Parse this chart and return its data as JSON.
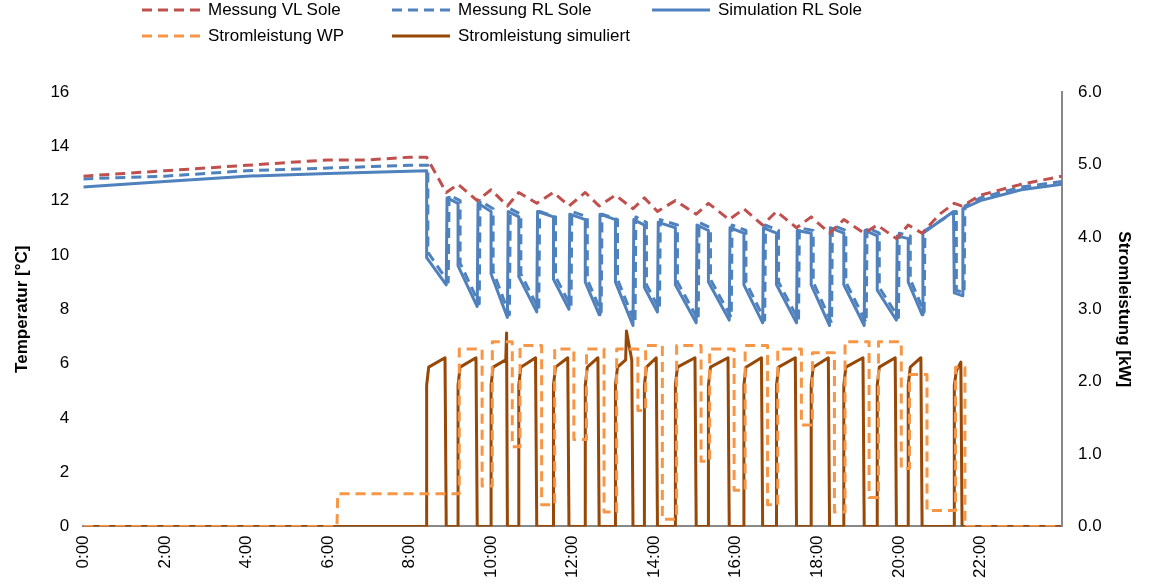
{
  "chart_data": {
    "type": "line",
    "ylabel": "Temperatur [°C]",
    "y2label": "Stromleistung [kW]",
    "xlim": [
      0,
      24
    ],
    "xticks": [
      {
        "value": 0,
        "label": "0:00"
      },
      {
        "value": 2,
        "label": "2:00"
      },
      {
        "value": 4,
        "label": "4:00"
      },
      {
        "value": 6,
        "label": "6:00"
      },
      {
        "value": 8,
        "label": "8:00"
      },
      {
        "value": 10,
        "label": "10:00"
      },
      {
        "value": 12,
        "label": "12:00"
      },
      {
        "value": 14,
        "label": "14:00"
      },
      {
        "value": 16,
        "label": "16:00"
      },
      {
        "value": 18,
        "label": "18:00"
      },
      {
        "value": 20,
        "label": "20:00"
      },
      {
        "value": 22,
        "label": "22:00"
      }
    ],
    "ylim": [
      0,
      16
    ],
    "yticks": [
      0,
      2,
      4,
      6,
      8,
      10,
      12,
      14,
      16
    ],
    "y2lim": [
      0,
      6
    ],
    "y2ticks": [
      {
        "value": 0,
        "label": "0.0"
      },
      {
        "value": 1,
        "label": "1.0"
      },
      {
        "value": 2,
        "label": "2.0"
      },
      {
        "value": 3,
        "label": "3.0"
      },
      {
        "value": 4,
        "label": "4.0"
      },
      {
        "value": 5,
        "label": "5.0"
      },
      {
        "value": 6,
        "label": "6.0"
      }
    ],
    "grid": false,
    "legend": "top",
    "series": [
      {
        "name": "Messung VL Sole",
        "color": "#c0504d",
        "line_style": "dashed",
        "x": [
          0,
          1,
          2,
          3,
          4,
          5,
          6,
          7,
          8,
          8.42,
          8.9,
          9.19,
          9.66,
          10.0,
          10.4,
          10.68,
          11.12,
          11.53,
          11.91,
          12.31,
          12.65,
          13.05,
          13.48,
          13.76,
          14.08,
          14.52,
          15.03,
          15.33,
          15.84,
          16.2,
          16.66,
          17.0,
          17.49,
          17.85,
          18.3,
          18.65,
          19.15,
          19.47,
          19.94,
          20.23,
          20.57,
          21.0,
          21.36,
          21.55,
          22,
          23,
          24
        ],
        "values": [
          12.9,
          13.0,
          13.1,
          13.2,
          13.3,
          13.4,
          13.5,
          13.5,
          13.6,
          13.6,
          12.3,
          12.6,
          12.0,
          12.4,
          11.8,
          12.3,
          11.9,
          12.3,
          11.8,
          12.3,
          11.8,
          12.2,
          11.7,
          12.1,
          11.6,
          12.0,
          11.5,
          11.9,
          11.3,
          11.7,
          11.1,
          11.6,
          11.0,
          11.4,
          10.8,
          11.3,
          10.8,
          11.1,
          10.6,
          11.1,
          10.8,
          11.5,
          11.9,
          11.8,
          12.2,
          12.6,
          12.9
        ]
      },
      {
        "name": "Messung RL Sole",
        "color": "#4f81bd",
        "line_style": "dashed",
        "x": [
          0,
          2,
          4,
          6,
          8,
          8.45,
          8.45,
          8.95,
          8.97,
          9.24,
          9.24,
          9.71,
          9.73,
          10.05,
          10.05,
          10.45,
          10.47,
          10.73,
          10.73,
          11.17,
          11.19,
          11.58,
          11.58,
          11.96,
          11.98,
          12.36,
          12.36,
          12.7,
          12.72,
          13.1,
          13.1,
          13.53,
          13.55,
          13.81,
          13.81,
          14.13,
          14.15,
          14.57,
          14.57,
          15.08,
          15.1,
          15.38,
          15.38,
          15.89,
          15.91,
          16.25,
          16.25,
          16.71,
          16.73,
          17.05,
          17.05,
          17.54,
          17.56,
          17.9,
          17.9,
          18.35,
          18.37,
          18.7,
          18.7,
          19.2,
          19.22,
          19.52,
          19.52,
          19.99,
          20.01,
          20.28,
          20.28,
          20.62,
          20.64,
          21.38,
          21.41,
          21.41,
          21.6,
          21.62,
          22,
          23,
          24
        ],
        "values": [
          12.8,
          12.9,
          13.1,
          13.2,
          13.3,
          13.3,
          10.1,
          9.0,
          12.2,
          12.0,
          9.7,
          8.2,
          12.0,
          11.7,
          9.4,
          7.8,
          11.7,
          11.5,
          9.3,
          8.0,
          11.6,
          11.4,
          9.2,
          8.1,
          11.6,
          11.4,
          9.1,
          7.9,
          11.5,
          11.3,
          9.1,
          7.5,
          11.4,
          11.2,
          8.9,
          8.0,
          11.3,
          11.1,
          9.0,
          7.6,
          11.2,
          11.0,
          9.1,
          7.7,
          11.1,
          10.9,
          9.0,
          7.6,
          11.1,
          10.9,
          9.0,
          7.6,
          11.0,
          10.9,
          9.0,
          7.5,
          11.1,
          10.9,
          9.0,
          7.5,
          11.0,
          10.8,
          8.8,
          7.7,
          10.8,
          10.7,
          9.1,
          7.9,
          10.9,
          11.6,
          11.6,
          8.7,
          8.6,
          11.8,
          12.1,
          12.5,
          12.7
        ]
      },
      {
        "name": "Simulation RL Sole",
        "color": "#4f81bd",
        "line_style": "solid",
        "x": [
          0,
          2,
          4,
          6,
          8.42,
          8.42,
          8.9,
          8.92,
          9.19,
          9.19,
          9.66,
          9.68,
          10.0,
          10.0,
          10.4,
          10.42,
          10.68,
          10.68,
          11.12,
          11.14,
          11.53,
          11.53,
          11.91,
          11.93,
          12.31,
          12.31,
          12.65,
          12.67,
          13.05,
          13.05,
          13.48,
          13.5,
          13.76,
          13.76,
          14.08,
          14.1,
          14.52,
          14.52,
          15.03,
          15.05,
          15.33,
          15.33,
          15.84,
          15.86,
          16.2,
          16.2,
          16.66,
          16.68,
          17.0,
          17.0,
          17.49,
          17.51,
          17.85,
          17.85,
          18.3,
          18.32,
          18.65,
          18.65,
          19.15,
          19.17,
          19.47,
          19.47,
          19.94,
          19.96,
          20.23,
          20.23,
          20.57,
          20.59,
          21.34,
          21.36,
          21.55,
          21.57,
          22,
          23,
          24
        ],
        "values": [
          12.5,
          12.7,
          12.9,
          13.0,
          13.1,
          9.9,
          8.9,
          12.1,
          11.9,
          9.6,
          8.1,
          11.9,
          11.6,
          9.3,
          7.7,
          11.6,
          11.4,
          9.2,
          7.9,
          11.6,
          11.4,
          9.1,
          8.0,
          11.5,
          11.3,
          9.0,
          7.8,
          11.5,
          11.3,
          9.0,
          7.4,
          11.3,
          11.1,
          8.8,
          7.9,
          11.2,
          11.0,
          8.9,
          7.5,
          11.1,
          10.9,
          9.0,
          7.6,
          11.0,
          10.8,
          8.9,
          7.5,
          11.0,
          10.8,
          8.9,
          7.5,
          10.9,
          10.8,
          8.9,
          7.4,
          11.0,
          10.8,
          8.9,
          7.4,
          10.9,
          10.7,
          8.7,
          7.6,
          10.7,
          10.6,
          9.0,
          7.8,
          10.8,
          11.6,
          8.6,
          8.5,
          11.7,
          12.0,
          12.4,
          12.6
        ]
      },
      {
        "name": "Stromleistung WP",
        "color": "#f79646",
        "line_style": "dashed",
        "axis": "y2",
        "x": [
          0,
          6.22,
          6.24,
          9.22,
          9.22,
          9.78,
          9.78,
          10.03,
          10.03,
          10.52,
          10.52,
          10.71,
          10.71,
          11.24,
          11.24,
          11.56,
          11.56,
          12.03,
          12.03,
          12.34,
          12.34,
          12.77,
          12.77,
          13.08,
          13.08,
          13.6,
          13.6,
          13.79,
          13.79,
          14.2,
          14.2,
          14.55,
          14.55,
          15.15,
          15.15,
          15.36,
          15.36,
          15.96,
          15.96,
          16.23,
          16.23,
          16.78,
          16.78,
          17.03,
          17.03,
          17.61,
          17.61,
          17.88,
          17.88,
          18.42,
          18.42,
          18.68,
          18.68,
          19.27,
          19.27,
          19.5,
          19.5,
          20.06,
          20.06,
          20.26,
          20.26,
          20.69,
          20.69,
          21.39,
          21.39,
          21.62,
          21.62,
          24
        ],
        "values": [
          0,
          0,
          0.45,
          0.45,
          2.45,
          2.45,
          0.56,
          0.56,
          2.55,
          2.55,
          1.1,
          1.1,
          2.5,
          2.5,
          0.3,
          0.3,
          2.45,
          2.45,
          1.2,
          1.2,
          2.45,
          2.45,
          0.2,
          0.2,
          2.45,
          2.45,
          1.6,
          1.6,
          2.5,
          2.5,
          0.1,
          0.1,
          2.5,
          2.5,
          0.9,
          0.9,
          2.45,
          2.45,
          0.5,
          0.5,
          2.5,
          2.5,
          0.3,
          0.3,
          2.45,
          2.45,
          1.4,
          1.4,
          2.4,
          2.4,
          0.2,
          0.2,
          2.55,
          2.55,
          0.4,
          0.4,
          2.55,
          2.55,
          0.8,
          0.8,
          2.1,
          2.1,
          0.22,
          0.22,
          2.2,
          2.2,
          0,
          0
        ]
      },
      {
        "name": "Stromleistung simuliert",
        "color": "#974706",
        "line_style": "solid",
        "axis": "y2",
        "x": [
          0,
          8.42,
          8.42,
          8.47,
          8.87,
          8.9,
          9.19,
          9.19,
          9.24,
          9.63,
          9.66,
          10.0,
          10.0,
          10.05,
          10.36,
          10.38,
          10.4,
          10.68,
          10.68,
          10.73,
          11.09,
          11.12,
          11.53,
          11.53,
          11.58,
          11.88,
          11.91,
          12.31,
          12.31,
          12.36,
          12.62,
          12.65,
          13.05,
          13.05,
          13.1,
          13.3,
          13.32,
          13.45,
          13.48,
          13.76,
          13.76,
          13.81,
          14.05,
          14.08,
          14.52,
          14.52,
          14.57,
          15.0,
          15.03,
          15.33,
          15.33,
          15.38,
          15.81,
          15.84,
          16.2,
          16.2,
          16.25,
          16.63,
          16.66,
          17.0,
          17.0,
          17.05,
          17.46,
          17.49,
          17.85,
          17.85,
          17.9,
          18.27,
          18.3,
          18.65,
          18.65,
          18.7,
          19.12,
          19.15,
          19.47,
          19.47,
          19.52,
          19.91,
          19.94,
          20.23,
          20.23,
          20.28,
          20.54,
          20.57,
          21.36,
          21.36,
          21.41,
          21.52,
          21.55,
          24
        ],
        "values": [
          0,
          0,
          1.95,
          2.2,
          2.33,
          0,
          0,
          1.95,
          2.2,
          2.33,
          0,
          0,
          1.95,
          2.2,
          2.3,
          2.67,
          0,
          0,
          1.95,
          2.2,
          2.33,
          0,
          0,
          1.95,
          2.2,
          2.33,
          0,
          0,
          1.95,
          2.2,
          2.33,
          0,
          0,
          1.95,
          2.2,
          2.3,
          2.7,
          2.3,
          0,
          0,
          1.95,
          2.2,
          2.33,
          0,
          0,
          1.95,
          2.2,
          2.33,
          0,
          0,
          1.95,
          2.2,
          2.33,
          0,
          0,
          1.95,
          2.2,
          2.33,
          0,
          0,
          1.95,
          2.2,
          2.33,
          0,
          0,
          1.95,
          2.2,
          2.33,
          0,
          0,
          1.95,
          2.2,
          2.33,
          0,
          0,
          1.95,
          2.2,
          2.33,
          0,
          0,
          1.95,
          2.2,
          2.33,
          0,
          0,
          1.95,
          2.15,
          2.27,
          0,
          0
        ]
      }
    ]
  }
}
